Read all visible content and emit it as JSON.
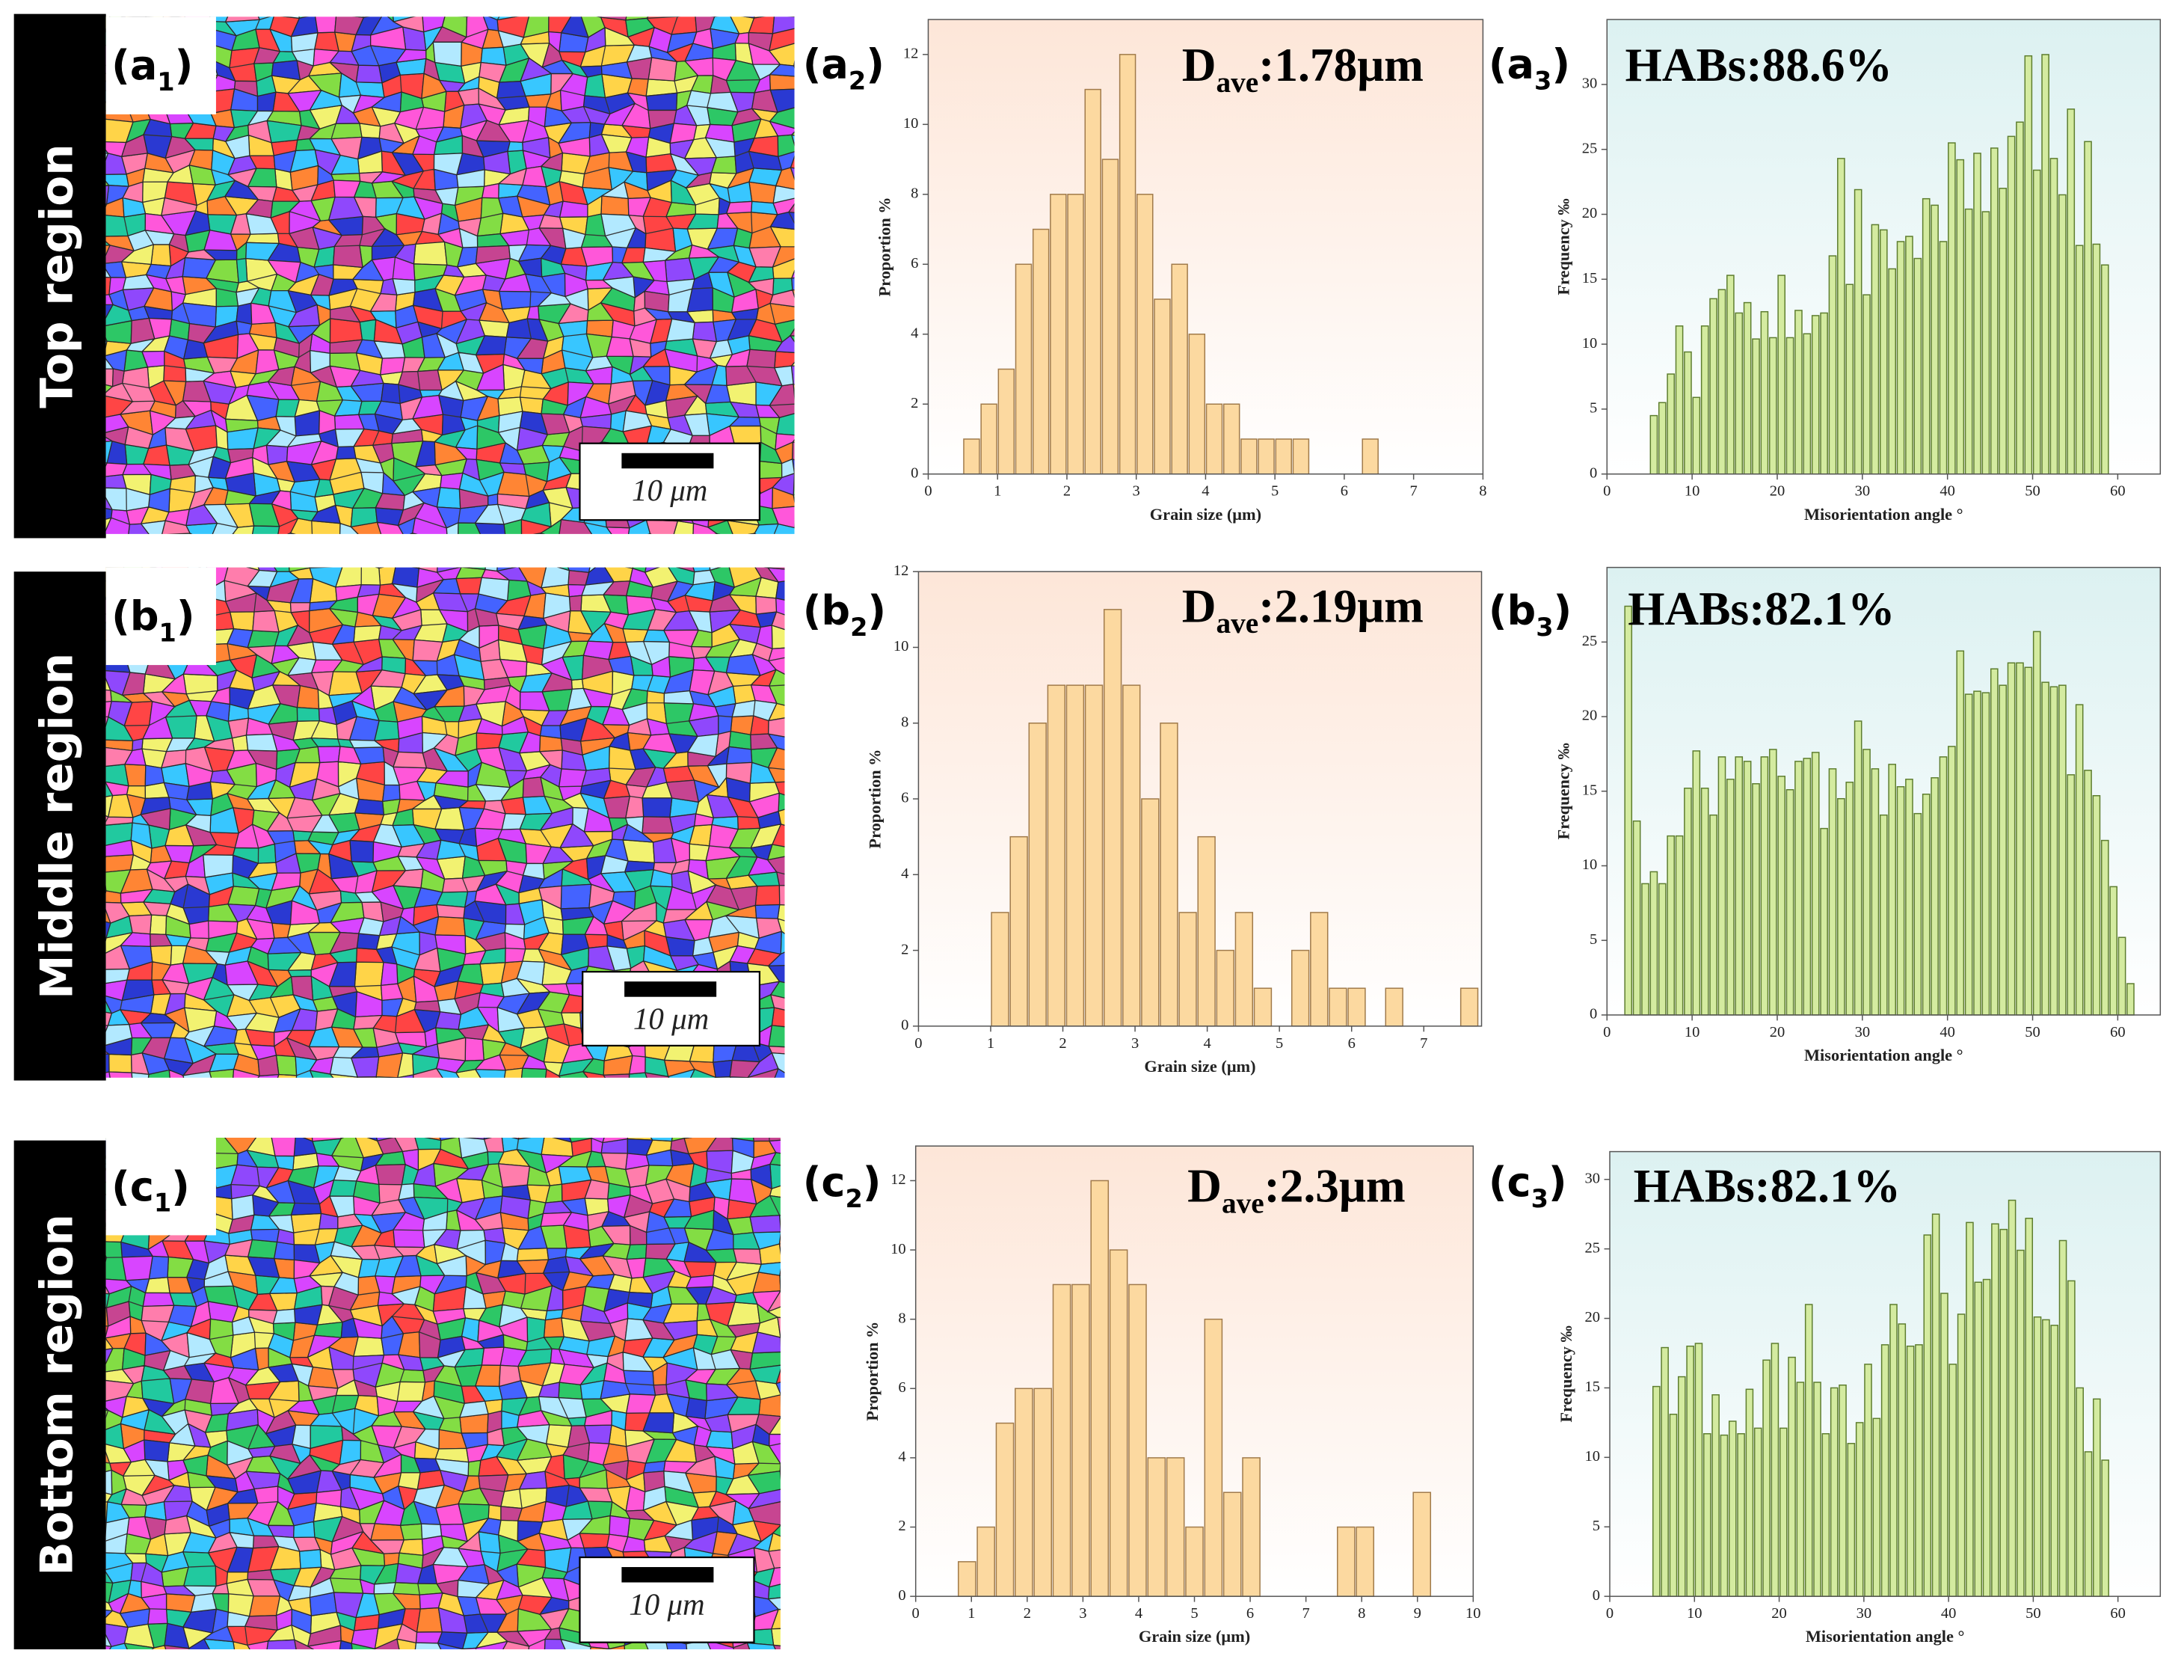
{
  "rows": [
    {
      "region": "Top region",
      "map_label": {
        "main": "(a",
        "sub": "1",
        "rest": ")"
      },
      "scale_bar": "10 μm"
    },
    {
      "region": "Middle region",
      "map_label": {
        "main": "(b",
        "sub": "1",
        "rest": ")"
      },
      "scale_bar": "10 μm"
    },
    {
      "region": "Bottom region",
      "map_label": {
        "main": "(c",
        "sub": "1",
        "rest": ")"
      },
      "scale_bar": "10 μm"
    }
  ],
  "chart_data": [
    {
      "type": "histogram",
      "panel_label": {
        "main": "(a",
        "sub": "2",
        "rest": ")"
      },
      "annotation": {
        "main": "D",
        "sub": "ave",
        "rest": ":1.78μm"
      },
      "x_label": "Grain size (μm)",
      "y_label": "Proportion %",
      "bins": [
        0.5,
        0.75,
        1,
        1.25,
        1.5,
        1.75,
        2,
        2.25,
        2.5,
        2.75,
        3,
        3.25,
        3.5,
        3.75,
        4,
        4.25,
        4.5,
        4.75,
        5,
        5.25,
        5.5,
        5.75,
        6,
        6.25,
        6.5
      ],
      "values": [
        1,
        2,
        3,
        6,
        7,
        8,
        8,
        11,
        9,
        12,
        8,
        5,
        6,
        4,
        2,
        2,
        1,
        1,
        1,
        1,
        0,
        0,
        0,
        1
      ],
      "xlim": [
        0,
        8
      ],
      "xticks": [
        0,
        1,
        2,
        3,
        4,
        5,
        6,
        7,
        8
      ],
      "ylim": [
        0,
        13
      ],
      "yticks": [
        0,
        2,
        4,
        6,
        8,
        10,
        12
      ],
      "color": "#fcd9a0",
      "edge_color": "#a07a4a",
      "background": "#fde6d8"
    },
    {
      "type": "histogram",
      "panel_label": {
        "main": "(a",
        "sub": "3",
        "rest": ")"
      },
      "annotation": {
        "main": "HABs:88.6%"
      },
      "x_label": "Misorientation angle °",
      "y_label": "Frequency ‰",
      "bins": [
        5,
        6,
        7,
        8,
        9,
        10,
        11,
        12,
        13,
        14,
        15,
        16,
        17,
        18,
        19,
        20,
        21,
        22,
        23,
        24,
        25,
        26,
        27,
        28,
        29,
        30,
        31,
        32,
        33,
        34,
        35,
        36,
        37,
        38,
        39,
        40,
        41,
        42,
        43,
        44,
        45,
        46,
        47,
        48,
        49,
        50,
        51,
        52,
        53,
        54,
        55,
        56,
        57,
        58,
        59
      ],
      "values": [
        4.5,
        5.5,
        7.7,
        11.4,
        9.4,
        5.9,
        11.4,
        13.5,
        14.2,
        15.3,
        12.4,
        13.2,
        10.4,
        12.5,
        10.5,
        15.3,
        10.5,
        12.6,
        10.8,
        12.2,
        12.4,
        16.8,
        24.3,
        14.6,
        21.9,
        13.8,
        19.2,
        18.8,
        15.8,
        17.9,
        18.3,
        16.6,
        21.2,
        20.7,
        17.9,
        25.5,
        24.2,
        20.4,
        24.7,
        20.2,
        25.1,
        22.0,
        26.0,
        27.1,
        32.2,
        23.4,
        32.3,
        24.3,
        21.5,
        28.1,
        17.6,
        25.6,
        17.7,
        16.1
      ],
      "xlim": [
        0,
        65
      ],
      "xticks": [
        0,
        10,
        20,
        30,
        40,
        50,
        60
      ],
      "ylim": [
        0,
        35
      ],
      "yticks": [
        0,
        5,
        10,
        15,
        20,
        25,
        30
      ],
      "color": "#d4eba0",
      "edge_color": "#5d7d2e",
      "background": "#dcf1f1"
    },
    {
      "type": "histogram",
      "panel_label": {
        "main": "(b",
        "sub": "2",
        "rest": ")"
      },
      "annotation": {
        "main": "D",
        "sub": "ave",
        "rest": ":2.19μm"
      },
      "x_label": "Grain size (μm)",
      "y_label": "Proportion %",
      "bins": [
        1.0,
        1.26,
        1.52,
        1.78,
        2.04,
        2.3,
        2.56,
        2.82,
        3.08,
        3.34,
        3.6,
        3.86,
        4.12,
        4.38,
        4.64,
        4.9,
        5.16,
        5.42,
        5.68,
        5.94,
        6.2,
        6.46,
        6.72,
        6.98,
        7.24,
        7.5,
        7.76
      ],
      "values": [
        3,
        5,
        8,
        9,
        9,
        9,
        11,
        9,
        6,
        8,
        3,
        5,
        2,
        3,
        1,
        0,
        2,
        3,
        1,
        1,
        0,
        1,
        0,
        0,
        0,
        1
      ],
      "xlim": [
        0,
        7.8
      ],
      "xticks": [
        0,
        1,
        2,
        3,
        4,
        5,
        6,
        7
      ],
      "ylim": [
        0,
        12
      ],
      "yticks": [
        0,
        2,
        4,
        6,
        8,
        10,
        12
      ],
      "color": "#fcd9a0",
      "edge_color": "#a07a4a",
      "background": "#fde6d8"
    },
    {
      "type": "histogram",
      "panel_label": {
        "main": "(b",
        "sub": "3",
        "rest": ")"
      },
      "annotation": {
        "main": "HABs:82.1%"
      },
      "x_label": "Misorientation angle °",
      "y_label": "Frequency ‰",
      "bins": [
        2,
        3,
        4,
        5,
        6,
        7,
        8,
        9,
        10,
        11,
        12,
        13,
        14,
        15,
        16,
        17,
        18,
        19,
        20,
        21,
        22,
        23,
        24,
        25,
        26,
        27,
        28,
        29,
        30,
        31,
        32,
        33,
        34,
        35,
        36,
        37,
        38,
        39,
        40,
        41,
        42,
        43,
        44,
        45,
        46,
        47,
        48,
        49,
        50,
        51,
        52,
        53,
        54,
        55,
        56,
        57,
        58,
        59,
        60,
        61,
        62
      ],
      "values": [
        27.4,
        13,
        8.8,
        9.6,
        8.8,
        12,
        12,
        15.2,
        17.7,
        15.2,
        13.4,
        17.3,
        15.8,
        17.3,
        17,
        15.5,
        17.3,
        17.8,
        16,
        15.1,
        17,
        17.2,
        17.6,
        12.5,
        16.5,
        14.5,
        15.6,
        19.7,
        17.8,
        16.5,
        13.4,
        16.8,
        15.3,
        15.8,
        13.5,
        14.8,
        15.9,
        17.3,
        18,
        24.4,
        21.5,
        21.7,
        21.6,
        23.2,
        22.1,
        23.6,
        23.6,
        23.3,
        25.7,
        22.3,
        22,
        22.1,
        16.1,
        20.8,
        16.4,
        14.7,
        11.7,
        8.6,
        5.2,
        2.1
      ],
      "xlim": [
        0,
        65
      ],
      "xticks": [
        0,
        10,
        20,
        30,
        40,
        50,
        60
      ],
      "ylim": [
        0,
        30
      ],
      "yticks": [
        0,
        5,
        10,
        15,
        20,
        25
      ],
      "color": "#d4eba0",
      "edge_color": "#5d7d2e",
      "background": "#dcf1f1"
    },
    {
      "type": "histogram",
      "panel_label": {
        "main": "(c",
        "sub": "2",
        "rest": ")"
      },
      "annotation": {
        "main": "D",
        "sub": "ave",
        "rest": ":2.3μm"
      },
      "x_label": "Grain size (μm)",
      "y_label": "Proportion %",
      "bins": [
        0.75,
        1.09,
        1.43,
        1.77,
        2.11,
        2.45,
        2.79,
        3.13,
        3.47,
        3.81,
        4.15,
        4.49,
        4.83,
        5.17,
        5.51,
        5.85,
        6.19,
        6.53,
        6.87,
        7.21,
        7.55,
        7.89,
        8.23,
        8.57,
        8.91,
        9.25
      ],
      "values": [
        1,
        2,
        5,
        6,
        6,
        9,
        9,
        12,
        10,
        9,
        4,
        4,
        2,
        8,
        3,
        4,
        0,
        0,
        0,
        0,
        2,
        2,
        0,
        0,
        3
      ],
      "xlim": [
        0,
        10
      ],
      "xticks": [
        0,
        1,
        2,
        3,
        4,
        5,
        6,
        7,
        8,
        9,
        10
      ],
      "ylim": [
        0,
        13
      ],
      "yticks": [
        0,
        2,
        4,
        6,
        8,
        10,
        12
      ],
      "color": "#fcd9a0",
      "edge_color": "#a07a4a",
      "background": "#fde6d8"
    },
    {
      "type": "histogram",
      "panel_label": {
        "main": "(c",
        "sub": "3",
        "rest": ")"
      },
      "annotation": {
        "main": "HABs:82.1%"
      },
      "x_label": "Misorientation angle °",
      "y_label": "Frequency ‰",
      "bins": [
        5,
        6,
        7,
        8,
        9,
        10,
        11,
        12,
        13,
        14,
        15,
        16,
        17,
        18,
        19,
        20,
        21,
        22,
        23,
        24,
        25,
        26,
        27,
        28,
        29,
        30,
        31,
        32,
        33,
        34,
        35,
        36,
        37,
        38,
        39,
        40,
        41,
        42,
        43,
        44,
        45,
        46,
        47,
        48,
        49,
        50,
        51,
        52,
        53,
        54,
        55,
        56,
        57,
        58,
        59
      ],
      "values": [
        15.1,
        17.9,
        13.1,
        15.8,
        18,
        18.2,
        11.7,
        14.5,
        11.6,
        12.6,
        11.7,
        14.9,
        12.1,
        17,
        18.2,
        12.1,
        17.2,
        15.4,
        21,
        15.4,
        11.7,
        15,
        15.2,
        11,
        12.5,
        16.7,
        12.8,
        18.1,
        21,
        19.6,
        18,
        18.1,
        26,
        27.5,
        21.8,
        16.7,
        20.3,
        26.9,
        22.6,
        22.8,
        26.8,
        26.4,
        28.5,
        24.9,
        27.2,
        20.1,
        19.9,
        19.5,
        25.6,
        22.7,
        15,
        10.4,
        14.2,
        9.8
      ],
      "xlim": [
        0,
        65
      ],
      "xticks": [
        0,
        10,
        20,
        30,
        40,
        50,
        60
      ],
      "ylim": [
        0,
        32
      ],
      "yticks": [
        0,
        5,
        10,
        15,
        20,
        25,
        30
      ],
      "color": "#d4eba0",
      "edge_color": "#5d7d2e",
      "background": "#dcf1f1"
    }
  ]
}
